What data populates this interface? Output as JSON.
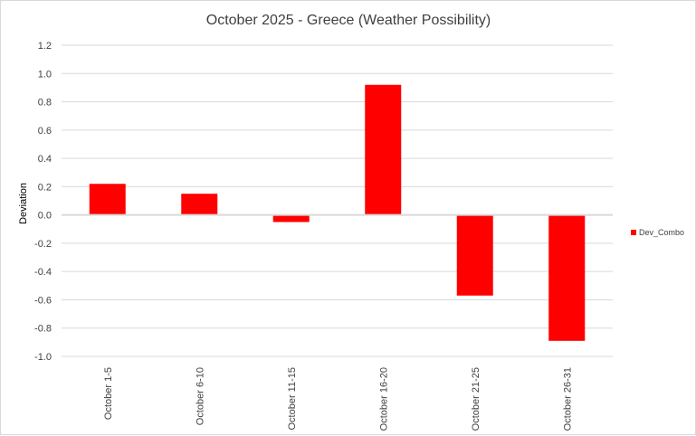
{
  "chart_data": {
    "type": "bar",
    "title": "October 2025 - Greece (Weather Possibility)",
    "xlabel": "",
    "ylabel": "Deviation",
    "categories": [
      "October 1-5",
      "October 6-10",
      "October 11-15",
      "October 16-20",
      "October 21-25",
      "October 26-31"
    ],
    "series": [
      {
        "name": "Dev_Combo",
        "values": [
          0.22,
          0.15,
          -0.05,
          0.92,
          -0.57,
          -0.89
        ],
        "color": "#ff0000"
      }
    ],
    "ylim": [
      -1.0,
      1.2
    ],
    "yticks": [
      "-1.0",
      "-0.8",
      "-0.6",
      "-0.4",
      "-0.2",
      "0.0",
      "0.2",
      "0.4",
      "0.6",
      "0.8",
      "1.0",
      "1.2"
    ],
    "grid": true,
    "legend_position": "right"
  }
}
